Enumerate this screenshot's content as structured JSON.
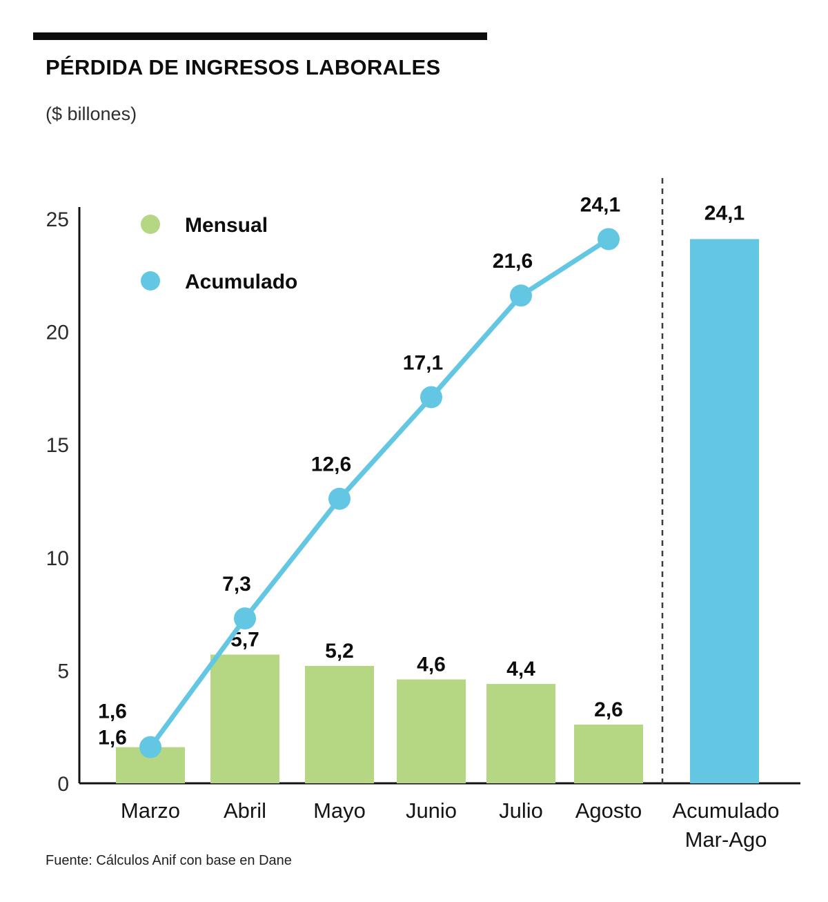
{
  "header": {
    "title": "PÉRDIDA DE INGRESOS LABORALES",
    "subtitle": "($ billones)"
  },
  "footer": {
    "source": "Fuente: Cálculos Anif con base en Dane"
  },
  "chart_data": {
    "type": "combo",
    "title": "PÉRDIDA DE INGRESOS LABORALES",
    "subtitle": "($ billones)",
    "categories": [
      "Marzo",
      "Abril",
      "Mayo",
      "Junio",
      "Julio",
      "Agosto"
    ],
    "series": [
      {
        "name": "Mensual",
        "type": "bar",
        "color": "#b5d784",
        "values": [
          1.6,
          5.7,
          5.2,
          4.6,
          4.4,
          2.6
        ],
        "labels": [
          "1,6",
          "5,7",
          "5,2",
          "4,6",
          "4,4",
          "2,6"
        ]
      },
      {
        "name": "Acumulado",
        "type": "line",
        "color": "#63c7e3",
        "values": [
          1.6,
          7.3,
          12.6,
          17.1,
          21.6,
          24.1
        ],
        "labels": [
          "1,6",
          "7,3",
          "12,6",
          "17,1",
          "21,6",
          "24,1"
        ]
      }
    ],
    "accumulated_bar": {
      "category": "Acumulado Mar-Ago",
      "category_lines": [
        "Acumulado",
        "Mar-Ago"
      ],
      "value": 24.1,
      "label": "24,1",
      "color": "#63c7e3"
    },
    "y_axis": {
      "min": 0,
      "max": 25,
      "ticks": [
        0,
        5,
        10,
        15,
        20,
        25
      ],
      "tick_labels": [
        "0",
        "5",
        "10",
        "15",
        "20",
        "25"
      ]
    },
    "legend": [
      {
        "label": "Mensual",
        "color": "#b5d784"
      },
      {
        "label": "Acumulado",
        "color": "#63c7e3"
      }
    ],
    "grid": false,
    "legend_position": "top-left-inside",
    "separator": "dashed vertical line between monthly panel and accumulated bar"
  }
}
